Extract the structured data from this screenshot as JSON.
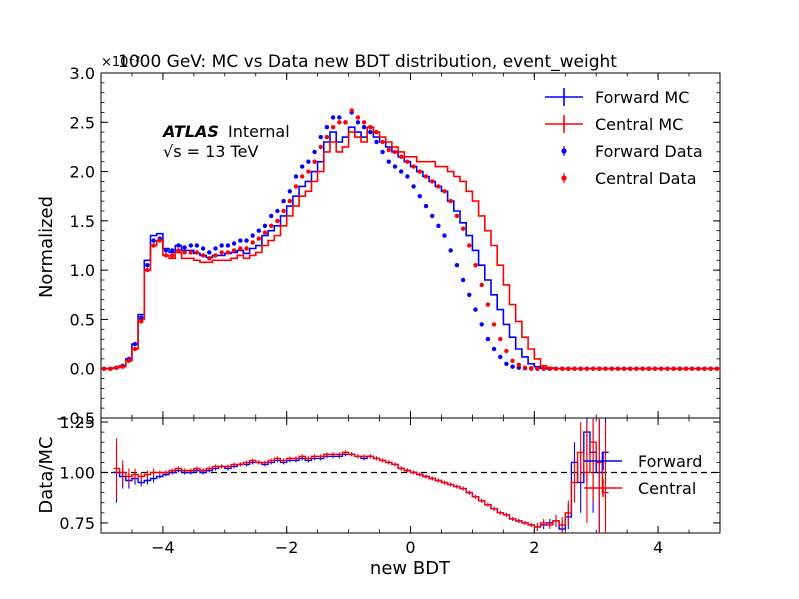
{
  "figure": {
    "title": "1000 GeV: MC vs Data new BDT distribution, event_weight",
    "exponent_label": "×10⁻²",
    "atlas_label": "ATLAS",
    "atlas_status": "Internal",
    "energy_label": "√s = 13 TeV"
  },
  "colors": {
    "forward": "#0000ff",
    "central": "#ff0000",
    "ref_line": "#000000"
  },
  "chart_data": [
    {
      "type": "line",
      "panel": "main",
      "title": "1000 GeV: MC vs Data new BDT distribution, event_weight",
      "xlabel": "new BDT",
      "ylabel": "Normalized",
      "y_multiplier": "×10⁻²",
      "xlim": [
        -5,
        5
      ],
      "ylim": [
        -0.5,
        3.0
      ],
      "yticks": [
        -0.5,
        0.0,
        0.5,
        1.0,
        1.5,
        2.0,
        2.5,
        3.0
      ],
      "ytick_labels": [
        "−0.5",
        "0.0",
        "0.5",
        "1.0",
        "1.5",
        "2.0",
        "2.5",
        "3.0"
      ],
      "legend_position": "top-right",
      "bin_edges": [
        -5.0,
        -4.9,
        -4.8,
        -4.7,
        -4.6,
        -4.5,
        -4.4,
        -4.3,
        -4.2,
        -4.1,
        -4.0,
        -3.9,
        -3.8,
        -3.7,
        -3.6,
        -3.5,
        -3.4,
        -3.3,
        -3.2,
        -3.1,
        -3.0,
        -2.9,
        -2.8,
        -2.7,
        -2.6,
        -2.5,
        -2.4,
        -2.3,
        -2.2,
        -2.1,
        -2.0,
        -1.9,
        -1.8,
        -1.7,
        -1.6,
        -1.5,
        -1.4,
        -1.3,
        -1.2,
        -1.1,
        -1.0,
        -0.9,
        -0.8,
        -0.7,
        -0.6,
        -0.5,
        -0.4,
        -0.3,
        -0.2,
        -0.1,
        0.0,
        0.1,
        0.2,
        0.3,
        0.4,
        0.5,
        0.6,
        0.7,
        0.8,
        0.9,
        1.0,
        1.1,
        1.2,
        1.3,
        1.4,
        1.5,
        1.6,
        1.7,
        1.8,
        1.9,
        2.0,
        2.1,
        2.2,
        2.3,
        2.4,
        2.5,
        2.6,
        2.7,
        2.8,
        2.9,
        3.0,
        3.1,
        3.2,
        3.3,
        3.4,
        3.5,
        3.6,
        3.7,
        3.8,
        3.9,
        4.0,
        4.1,
        4.2,
        4.3,
        4.4,
        4.5,
        4.6,
        4.7,
        4.8,
        4.9,
        5.0
      ],
      "series": [
        {
          "name": "Forward MC",
          "style": "step",
          "color": "#0000ff",
          "values": [
            0,
            0,
            0.01,
            0.03,
            0.1,
            0.25,
            0.55,
            1.1,
            1.35,
            1.37,
            1.22,
            1.18,
            1.25,
            1.2,
            1.2,
            1.17,
            1.15,
            1.13,
            1.15,
            1.15,
            1.17,
            1.18,
            1.2,
            1.17,
            1.22,
            1.25,
            1.35,
            1.4,
            1.45,
            1.55,
            1.65,
            1.75,
            1.85,
            1.9,
            2.0,
            2.1,
            2.3,
            2.4,
            2.3,
            2.35,
            2.45,
            2.4,
            2.35,
            2.45,
            2.35,
            2.3,
            2.25,
            2.2,
            2.15,
            2.1,
            2.05,
            2.0,
            1.95,
            1.9,
            1.85,
            1.8,
            1.7,
            1.6,
            1.48,
            1.35,
            1.2,
            1.05,
            0.9,
            0.75,
            0.6,
            0.45,
            0.32,
            0.2,
            0.12,
            0.05,
            0.02,
            0.005,
            0,
            0,
            0,
            0,
            0,
            0,
            0,
            0,
            0,
            0,
            0,
            0,
            0,
            0,
            0,
            0,
            0,
            0,
            0,
            0,
            0,
            0,
            0,
            0,
            0,
            0,
            0,
            0
          ]
        },
        {
          "name": "Central MC",
          "style": "step",
          "color": "#ff0000",
          "values": [
            0,
            0,
            0.01,
            0.02,
            0.08,
            0.2,
            0.5,
            1.0,
            1.25,
            1.3,
            1.15,
            1.12,
            1.18,
            1.12,
            1.12,
            1.1,
            1.08,
            1.08,
            1.1,
            1.1,
            1.1,
            1.12,
            1.15,
            1.12,
            1.15,
            1.18,
            1.25,
            1.3,
            1.35,
            1.45,
            1.55,
            1.65,
            1.75,
            1.8,
            1.9,
            2.0,
            2.2,
            2.3,
            2.2,
            2.25,
            2.4,
            2.35,
            2.3,
            2.45,
            2.4,
            2.35,
            2.3,
            2.25,
            2.2,
            2.15,
            2.15,
            2.1,
            2.1,
            2.1,
            2.05,
            2.05,
            2.0,
            1.95,
            1.9,
            1.8,
            1.7,
            1.55,
            1.4,
            1.25,
            1.05,
            0.85,
            0.65,
            0.48,
            0.32,
            0.2,
            0.1,
            0.03,
            0.01,
            0,
            0,
            0,
            0,
            0,
            0,
            0,
            0,
            0,
            0,
            0,
            0,
            0,
            0,
            0,
            0,
            0,
            0,
            0,
            0,
            0,
            0,
            0,
            0,
            0,
            0,
            0
          ]
        },
        {
          "name": "Forward Data",
          "style": "points",
          "color": "#0000ff",
          "values": [
            0,
            0,
            0.01,
            0.03,
            0.1,
            0.25,
            0.52,
            1.05,
            1.3,
            1.32,
            1.2,
            1.2,
            1.25,
            1.23,
            1.25,
            1.25,
            1.22,
            1.18,
            1.22,
            1.25,
            1.25,
            1.27,
            1.3,
            1.3,
            1.35,
            1.4,
            1.45,
            1.55,
            1.6,
            1.7,
            1.8,
            1.95,
            2.05,
            2.1,
            2.2,
            2.35,
            2.45,
            2.55,
            2.55,
            2.5,
            2.6,
            2.5,
            2.45,
            2.4,
            2.3,
            2.2,
            2.1,
            2.05,
            2.0,
            1.95,
            1.85,
            1.75,
            1.65,
            1.55,
            1.45,
            1.35,
            1.2,
            1.05,
            0.9,
            0.75,
            0.6,
            0.45,
            0.3,
            0.2,
            0.12,
            0.05,
            0.02,
            0.01,
            0.005,
            0,
            0,
            0,
            0,
            0,
            0,
            0,
            0,
            0,
            0,
            0,
            0,
            0,
            0,
            0,
            0,
            0,
            0,
            0,
            0,
            0,
            0,
            0,
            0,
            0,
            0,
            0,
            0,
            0,
            0,
            0
          ]
        },
        {
          "name": "Central Data",
          "style": "points",
          "color": "#ff0000",
          "values": [
            0,
            0,
            0.01,
            0.02,
            0.08,
            0.2,
            0.48,
            1.0,
            1.25,
            1.3,
            1.15,
            1.15,
            1.2,
            1.18,
            1.18,
            1.18,
            1.15,
            1.12,
            1.15,
            1.18,
            1.18,
            1.2,
            1.22,
            1.22,
            1.28,
            1.32,
            1.38,
            1.45,
            1.5,
            1.6,
            1.7,
            1.85,
            1.95,
            2.0,
            2.1,
            2.25,
            2.35,
            2.45,
            2.5,
            2.5,
            2.62,
            2.55,
            2.5,
            2.45,
            2.4,
            2.3,
            2.22,
            2.2,
            2.15,
            2.1,
            2.05,
            2.0,
            1.95,
            1.9,
            1.85,
            1.8,
            1.7,
            1.55,
            1.42,
            1.25,
            1.05,
            0.85,
            0.65,
            0.45,
            0.3,
            0.18,
            0.08,
            0.04,
            0.01,
            0.005,
            0,
            0,
            0,
            0,
            0,
            0,
            0,
            0,
            0,
            0,
            0,
            0,
            0,
            0,
            0,
            0,
            0,
            0,
            0,
            0,
            0,
            0,
            0,
            0,
            0,
            0,
            0,
            0,
            0,
            0
          ]
        }
      ]
    },
    {
      "type": "line",
      "panel": "ratio",
      "xlabel": "new BDT",
      "ylabel": "Data/MC",
      "xlim": [
        -5,
        5
      ],
      "ylim": [
        0.7,
        1.27
      ],
      "xticks": [
        -4,
        -2,
        0,
        2,
        4
      ],
      "xtick_labels": [
        "−4",
        "−2",
        "0",
        "2",
        "4"
      ],
      "yticks": [
        0.75,
        1.0,
        1.25
      ],
      "ytick_labels": [
        "0.75",
        "1.00",
        "1.25"
      ],
      "reference_line": 1.0,
      "legend_position": "right",
      "bin_edges": [
        -4.8,
        -4.7,
        -4.6,
        -4.5,
        -4.4,
        -4.3,
        -4.2,
        -4.1,
        -4.0,
        -3.9,
        -3.8,
        -3.7,
        -3.6,
        -3.5,
        -3.4,
        -3.3,
        -3.2,
        -3.1,
        -3.0,
        -2.9,
        -2.8,
        -2.7,
        -2.6,
        -2.5,
        -2.4,
        -2.3,
        -2.2,
        -2.1,
        -2.0,
        -1.9,
        -1.8,
        -1.7,
        -1.6,
        -1.5,
        -1.4,
        -1.3,
        -1.2,
        -1.1,
        -1.0,
        -0.9,
        -0.8,
        -0.7,
        -0.6,
        -0.5,
        -0.4,
        -0.3,
        -0.2,
        -0.1,
        0.0,
        0.1,
        0.2,
        0.3,
        0.4,
        0.5,
        0.6,
        0.7,
        0.8,
        0.9,
        1.0,
        1.1,
        1.2,
        1.3,
        1.4,
        1.5,
        1.6,
        1.7,
        1.8,
        1.9,
        2.0,
        2.1,
        2.2,
        2.3,
        2.4,
        2.5,
        2.6,
        2.7,
        2.8,
        2.9,
        3.0,
        3.1,
        3.2
      ],
      "series": [
        {
          "name": "Forward",
          "color": "#0000ff",
          "values": [
            1.0,
            0.98,
            0.96,
            0.97,
            0.95,
            0.96,
            0.97,
            0.98,
            0.99,
            1.0,
            1.01,
            1.0,
            1.0,
            1.01,
            1.0,
            1.01,
            1.02,
            1.03,
            1.02,
            1.03,
            1.04,
            1.04,
            1.05,
            1.05,
            1.04,
            1.05,
            1.06,
            1.05,
            1.06,
            1.06,
            1.07,
            1.06,
            1.07,
            1.07,
            1.08,
            1.08,
            1.08,
            1.09,
            1.09,
            1.08,
            1.07,
            1.08,
            1.07,
            1.06,
            1.05,
            1.04,
            1.02,
            1.01,
            1.0,
            0.99,
            0.98,
            0.97,
            0.96,
            0.95,
            0.94,
            0.93,
            0.92,
            0.9,
            0.88,
            0.86,
            0.84,
            0.82,
            0.8,
            0.79,
            0.77,
            0.76,
            0.75,
            0.74,
            0.73,
            0.74,
            0.75,
            0.76,
            0.72,
            0.78,
            1.05,
            0.95,
            1.2,
            1.1,
            1.0,
            1.1
          ],
          "errors": [
            0.15,
            0.06,
            0.04,
            0.03,
            0.02,
            0.02,
            0.02,
            0.01,
            0.01,
            0.01,
            0.01,
            0.01,
            0.01,
            0.01,
            0.01,
            0.01,
            0.01,
            0.01,
            0.01,
            0.01,
            0.01,
            0.01,
            0.01,
            0.01,
            0.01,
            0.01,
            0.01,
            0.01,
            0.01,
            0.01,
            0.01,
            0.01,
            0.01,
            0.01,
            0.01,
            0.01,
            0.01,
            0.01,
            0.01,
            0.01,
            0.01,
            0.01,
            0.01,
            0.01,
            0.01,
            0.01,
            0.01,
            0.01,
            0.01,
            0.01,
            0.01,
            0.01,
            0.01,
            0.01,
            0.01,
            0.01,
            0.01,
            0.01,
            0.01,
            0.01,
            0.01,
            0.01,
            0.01,
            0.01,
            0.01,
            0.01,
            0.01,
            0.01,
            0.02,
            0.02,
            0.02,
            0.03,
            0.04,
            0.06,
            0.1,
            0.15,
            0.25,
            0.3,
            0.35,
            0.35
          ]
        },
        {
          "name": "Central",
          "color": "#ff0000",
          "values": [
            1.02,
            1.0,
            0.98,
            0.99,
            0.98,
            0.99,
            1.0,
            1.0,
            1.0,
            1.01,
            1.02,
            1.01,
            1.01,
            1.02,
            1.01,
            1.02,
            1.03,
            1.03,
            1.03,
            1.04,
            1.04,
            1.05,
            1.06,
            1.05,
            1.05,
            1.06,
            1.07,
            1.06,
            1.07,
            1.07,
            1.08,
            1.07,
            1.08,
            1.08,
            1.09,
            1.09,
            1.09,
            1.1,
            1.09,
            1.08,
            1.08,
            1.08,
            1.07,
            1.06,
            1.05,
            1.04,
            1.02,
            1.01,
            1.0,
            0.99,
            0.98,
            0.97,
            0.96,
            0.95,
            0.94,
            0.93,
            0.92,
            0.9,
            0.88,
            0.86,
            0.84,
            0.82,
            0.8,
            0.79,
            0.77,
            0.76,
            0.75,
            0.74,
            0.73,
            0.75,
            0.74,
            0.76,
            0.74,
            0.8,
            0.95,
            1.1,
            1.0,
            1.15,
            1.05,
            0.9
          ],
          "errors": [
            0.15,
            0.06,
            0.04,
            0.03,
            0.02,
            0.02,
            0.02,
            0.01,
            0.01,
            0.01,
            0.01,
            0.01,
            0.01,
            0.01,
            0.01,
            0.01,
            0.01,
            0.01,
            0.01,
            0.01,
            0.01,
            0.01,
            0.01,
            0.01,
            0.01,
            0.01,
            0.01,
            0.01,
            0.01,
            0.01,
            0.01,
            0.01,
            0.01,
            0.01,
            0.01,
            0.01,
            0.01,
            0.01,
            0.01,
            0.01,
            0.01,
            0.01,
            0.01,
            0.01,
            0.01,
            0.01,
            0.01,
            0.01,
            0.01,
            0.01,
            0.01,
            0.01,
            0.01,
            0.01,
            0.01,
            0.01,
            0.01,
            0.01,
            0.01,
            0.01,
            0.01,
            0.01,
            0.01,
            0.01,
            0.01,
            0.01,
            0.01,
            0.01,
            0.02,
            0.02,
            0.02,
            0.03,
            0.04,
            0.06,
            0.1,
            0.15,
            0.25,
            0.3,
            0.35,
            0.35
          ]
        }
      ]
    }
  ]
}
